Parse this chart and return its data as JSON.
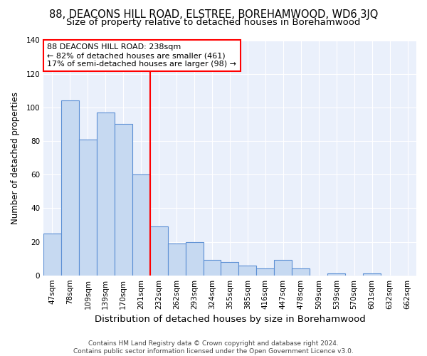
{
  "title": "88, DEACONS HILL ROAD, ELSTREE, BOREHAMWOOD, WD6 3JQ",
  "subtitle": "Size of property relative to detached houses in Borehamwood",
  "xlabel": "Distribution of detached houses by size in Borehamwood",
  "ylabel": "Number of detached properties",
  "categories": [
    "47sqm",
    "78sqm",
    "109sqm",
    "139sqm",
    "170sqm",
    "201sqm",
    "232sqm",
    "262sqm",
    "293sqm",
    "324sqm",
    "355sqm",
    "385sqm",
    "416sqm",
    "447sqm",
    "478sqm",
    "509sqm",
    "539sqm",
    "570sqm",
    "601sqm",
    "632sqm",
    "662sqm"
  ],
  "values": [
    25,
    104,
    81,
    97,
    90,
    60,
    29,
    19,
    20,
    9,
    8,
    6,
    4,
    9,
    4,
    0,
    1,
    0,
    1,
    0,
    0
  ],
  "bar_color": "#c6d9f1",
  "bar_edge_color": "#5b8fd4",
  "highlight_color": "red",
  "annotation_line1": "88 DEACONS HILL ROAD: 238sqm",
  "annotation_line2": "← 82% of detached houses are smaller (461)",
  "annotation_line3": "17% of semi-detached houses are larger (98) →",
  "annotation_box_color": "white",
  "annotation_box_edge_color": "red",
  "vline_x_index": 6,
  "ylim": [
    0,
    140
  ],
  "yticks": [
    0,
    20,
    40,
    60,
    80,
    100,
    120,
    140
  ],
  "bg_color": "#eaf0fb",
  "footer_text": "Contains HM Land Registry data © Crown copyright and database right 2024.\nContains public sector information licensed under the Open Government Licence v3.0.",
  "title_fontsize": 10.5,
  "subtitle_fontsize": 9.5,
  "xlabel_fontsize": 9.5,
  "ylabel_fontsize": 8.5,
  "tick_fontsize": 7.5,
  "annotation_fontsize": 8,
  "footer_fontsize": 6.5
}
